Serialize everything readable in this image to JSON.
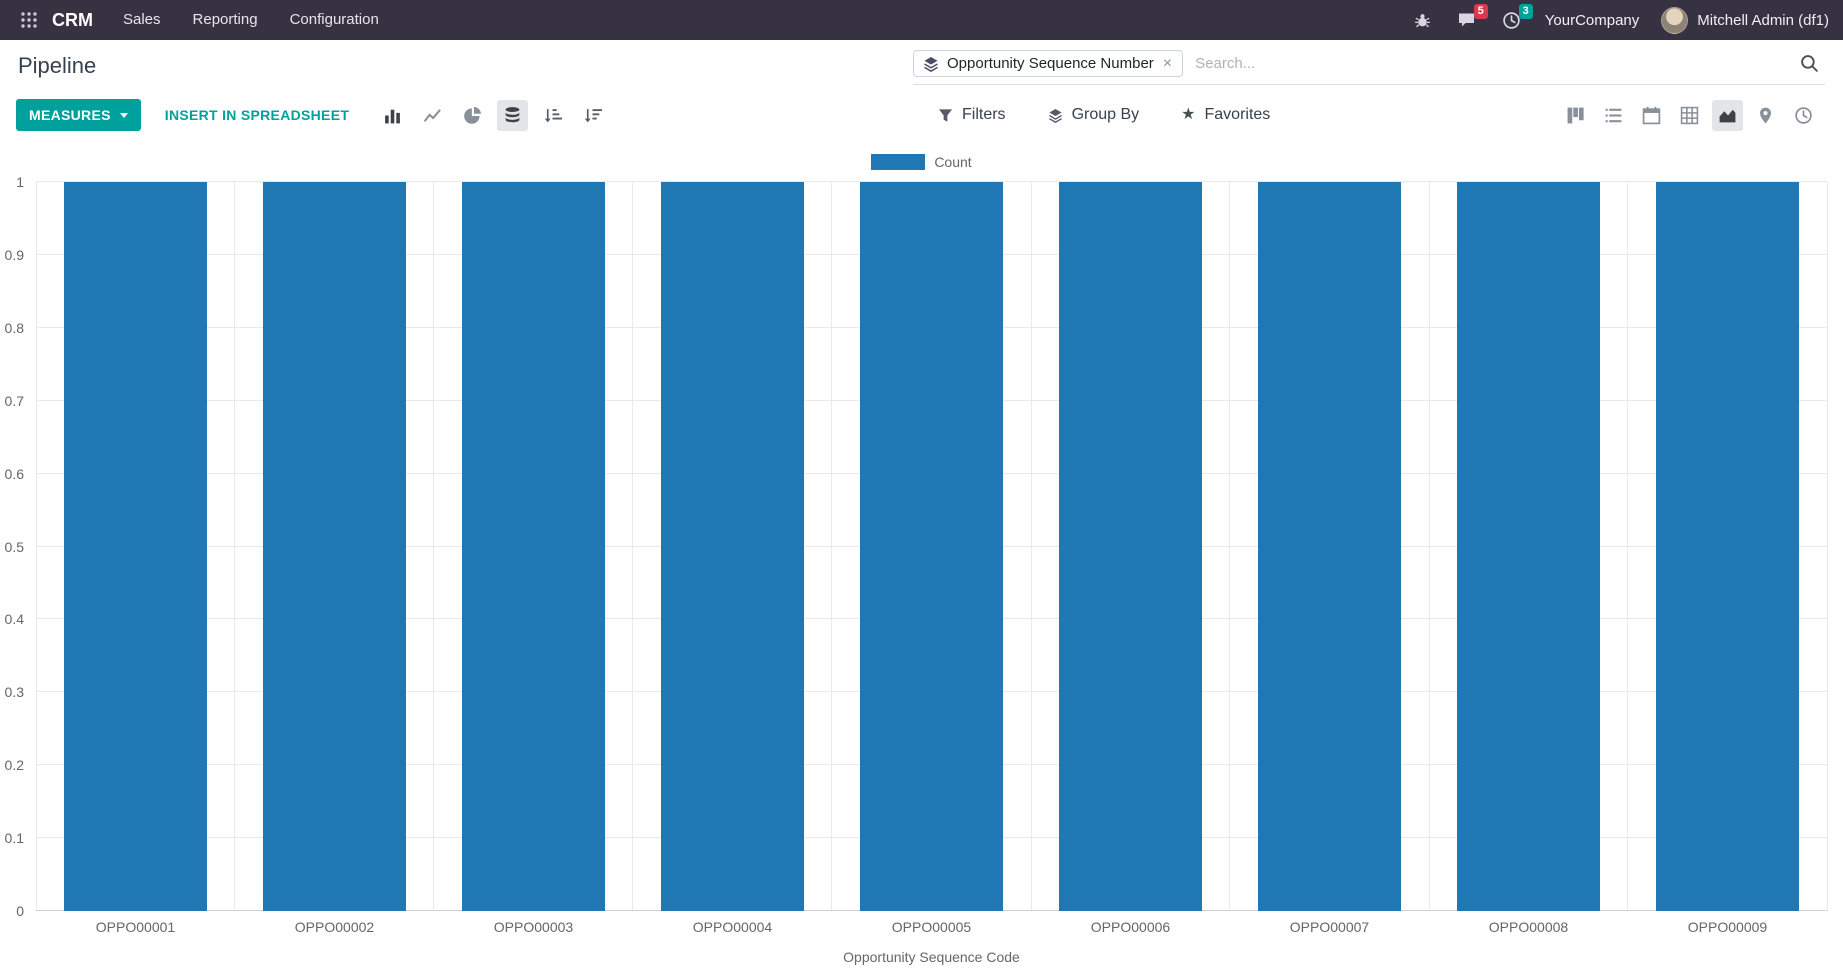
{
  "navbar": {
    "app_name": "CRM",
    "menus": [
      "Sales",
      "Reporting",
      "Configuration"
    ],
    "messages_badge": "5",
    "activities_badge": "3",
    "company_name": "YourCompany",
    "user_name": "Mitchell Admin (df1)"
  },
  "control_panel": {
    "title": "Pipeline",
    "search": {
      "facet_label": "Opportunity Sequence Number",
      "placeholder": "Search..."
    }
  },
  "toolbar": {
    "measures": "MEASURES",
    "insert_in_spreadsheet": "INSERT IN SPREADSHEET",
    "filters": "Filters",
    "group_by": "Group By",
    "favorites": "Favorites"
  },
  "chart_data": {
    "type": "bar",
    "title": "",
    "legend": [
      "Count"
    ],
    "categories": [
      "OPPO00001",
      "OPPO00002",
      "OPPO00003",
      "OPPO00004",
      "OPPO00005",
      "OPPO00006",
      "OPPO00007",
      "OPPO00008",
      "OPPO00009"
    ],
    "series": [
      {
        "name": "Count",
        "values": [
          1,
          1,
          1,
          1,
          1,
          1,
          1,
          1,
          1
        ]
      }
    ],
    "xlabel": "Opportunity Sequence Code",
    "ylabel": "",
    "ylim": [
      0,
      1
    ],
    "yticks": [
      0,
      0.1,
      0.2,
      0.3,
      0.4,
      0.5,
      0.6,
      0.7,
      0.8,
      0.9,
      1
    ],
    "grid": true,
    "legend_position": "top",
    "bar_color": "#1f77b4",
    "grid_color": "#e9e9e9"
  },
  "icons": {
    "close": "×",
    "star": "★",
    "apps_grid": "3x3-dots",
    "debug": "bug",
    "messages": "speech-bubble",
    "activities": "clock",
    "facet": "layers",
    "search": "magnifier",
    "chart_types": [
      "bar",
      "line",
      "pie",
      "stacked"
    ],
    "sorts": [
      "ascending",
      "descending"
    ],
    "filters": "funnel",
    "group_by": "layers",
    "views": [
      "kanban",
      "list",
      "calendar",
      "pivot",
      "graph",
      "map",
      "activity"
    ]
  },
  "colors": {
    "navbar_bg": "#373241",
    "accent": "#00a09d",
    "bar_blue": "#1f77b4",
    "badge_danger": "#d9394f",
    "badge_info": "#00a09d"
  }
}
